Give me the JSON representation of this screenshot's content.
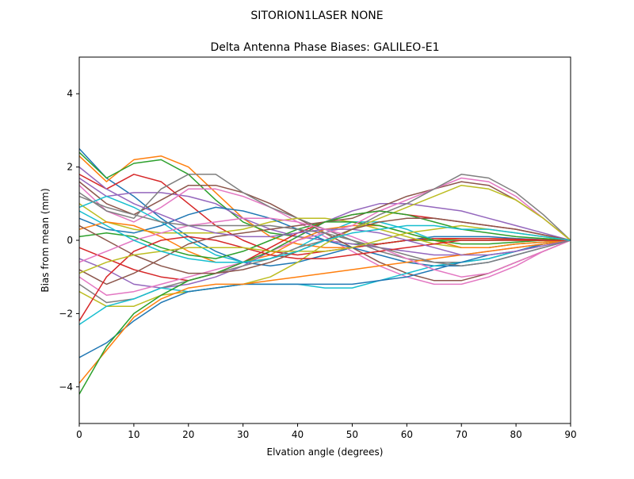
{
  "figure": {
    "suptitle": "SITORION1LASER  NONE"
  },
  "chart_data": {
    "type": "line",
    "title": "Delta Antenna Phase Biases: GALILEO-E1",
    "xlabel": "Elvation angle (degrees)",
    "ylabel": "Bias from mean (mm)",
    "xlim": [
      0,
      90
    ],
    "ylim": [
      -5,
      5
    ],
    "xticks": [
      0,
      10,
      20,
      30,
      40,
      50,
      60,
      70,
      80,
      90
    ],
    "yticks": [
      -4,
      -2,
      0,
      2,
      4
    ],
    "grid": false,
    "legend": "none",
    "x": [
      0,
      5,
      10,
      15,
      20,
      25,
      30,
      35,
      40,
      45,
      50,
      55,
      60,
      65,
      70,
      75,
      80,
      85,
      90
    ],
    "colors": [
      "#1f77b4",
      "#ff7f0e",
      "#2ca02c",
      "#d62728",
      "#9467bd",
      "#8c564b",
      "#e377c2",
      "#7f7f7f",
      "#bcbd22",
      "#17becf"
    ],
    "series": [
      {
        "values": [
          2.5,
          1.7,
          1.2,
          0.6,
          0.1,
          -0.3,
          -0.6,
          -0.7,
          -0.6,
          -0.4,
          -0.2,
          -0.1,
          0.0,
          0.1,
          0.1,
          0.1,
          0.05,
          0.02,
          0
        ]
      },
      {
        "values": [
          2.3,
          1.6,
          2.2,
          2.3,
          2.0,
          1.3,
          0.6,
          0.1,
          -0.1,
          -0.2,
          -0.2,
          -0.1,
          0.0,
          0.0,
          0.05,
          0.05,
          0.03,
          0.01,
          0
        ]
      },
      {
        "values": [
          2.4,
          1.7,
          2.1,
          2.2,
          1.8,
          1.1,
          0.5,
          0.2,
          0.1,
          0.0,
          -0.1,
          -0.1,
          0.0,
          0.0,
          0.0,
          0.0,
          0.0,
          0.0,
          0
        ]
      },
      {
        "values": [
          1.8,
          1.4,
          1.8,
          1.6,
          1.0,
          0.4,
          0.0,
          -0.3,
          -0.4,
          -0.3,
          -0.2,
          -0.1,
          0.0,
          0.05,
          0.05,
          0.05,
          0.03,
          0.01,
          0
        ]
      },
      {
        "values": [
          1.7,
          1.2,
          1.3,
          1.3,
          1.2,
          1.0,
          0.6,
          0.3,
          0.1,
          0.0,
          -0.1,
          -0.2,
          -0.3,
          -0.4,
          -0.4,
          -0.3,
          -0.2,
          -0.1,
          0
        ]
      },
      {
        "values": [
          1.6,
          1.0,
          0.7,
          1.1,
          1.5,
          1.5,
          1.3,
          1.0,
          0.6,
          0.2,
          -0.2,
          -0.6,
          -0.9,
          -1.1,
          -1.1,
          -0.9,
          -0.6,
          -0.3,
          0
        ]
      },
      {
        "values": [
          1.5,
          0.8,
          0.5,
          0.9,
          1.4,
          1.4,
          1.2,
          0.9,
          0.5,
          0.1,
          -0.3,
          -0.7,
          -1.0,
          -1.2,
          -1.2,
          -1.0,
          -0.7,
          -0.3,
          0
        ]
      },
      {
        "values": [
          1.3,
          0.8,
          0.6,
          1.4,
          1.8,
          1.8,
          1.3,
          0.9,
          0.6,
          0.3,
          0.0,
          -0.3,
          -0.5,
          -0.6,
          -0.6,
          -0.5,
          -0.3,
          -0.1,
          0
        ]
      },
      {
        "values": [
          1.0,
          0.5,
          0.3,
          0.2,
          0.2,
          0.2,
          0.3,
          0.5,
          0.6,
          0.6,
          0.5,
          0.3,
          0.1,
          -0.1,
          -0.2,
          -0.2,
          -0.1,
          -0.05,
          0
        ]
      },
      {
        "values": [
          0.9,
          1.2,
          0.9,
          0.5,
          0.0,
          -0.4,
          -0.6,
          -0.5,
          -0.2,
          0.2,
          0.5,
          0.5,
          0.3,
          0.0,
          -0.2,
          -0.2,
          -0.1,
          -0.05,
          0
        ]
      },
      {
        "values": [
          0.6,
          0.3,
          0.2,
          0.4,
          0.7,
          0.9,
          0.8,
          0.6,
          0.3,
          0.0,
          -0.2,
          -0.4,
          -0.6,
          -0.7,
          -0.7,
          -0.6,
          -0.4,
          -0.2,
          0
        ]
      },
      {
        "values": [
          0.3,
          0.5,
          0.4,
          0.1,
          -0.3,
          -0.6,
          -0.6,
          -0.4,
          0.0,
          0.3,
          0.4,
          0.4,
          0.2,
          0.0,
          -0.2,
          -0.2,
          -0.1,
          -0.05,
          0
        ]
      },
      {
        "values": [
          0.1,
          0.2,
          0.1,
          -0.2,
          -0.4,
          -0.5,
          -0.3,
          0.0,
          0.3,
          0.5,
          0.5,
          0.4,
          0.2,
          0.0,
          -0.1,
          -0.1,
          -0.05,
          0.0,
          0
        ]
      },
      {
        "values": [
          -0.2,
          -0.5,
          -0.8,
          -1.0,
          -1.1,
          -0.9,
          -0.6,
          -0.2,
          0.2,
          0.5,
          0.7,
          0.8,
          0.7,
          0.6,
          0.5,
          0.4,
          0.3,
          0.15,
          0
        ]
      },
      {
        "values": [
          -0.5,
          -0.8,
          -1.2,
          -1.3,
          -1.2,
          -1.0,
          -0.7,
          -0.3,
          0.1,
          0.5,
          0.8,
          1.0,
          1.0,
          0.9,
          0.8,
          0.6,
          0.4,
          0.2,
          0
        ]
      },
      {
        "values": [
          -0.8,
          -1.2,
          -0.9,
          -0.5,
          -0.1,
          0.1,
          0.2,
          0.3,
          0.4,
          0.5,
          0.6,
          0.9,
          1.2,
          1.4,
          1.6,
          1.5,
          1.1,
          0.6,
          0
        ]
      },
      {
        "values": [
          -1.0,
          -1.5,
          -1.4,
          -1.2,
          -1.0,
          -0.8,
          -0.6,
          -0.3,
          0.0,
          0.2,
          0.4,
          0.8,
          1.1,
          1.4,
          1.7,
          1.6,
          1.2,
          0.6,
          0
        ]
      },
      {
        "values": [
          -1.2,
          -1.7,
          -1.6,
          -1.3,
          -1.1,
          -0.9,
          -0.7,
          -0.5,
          -0.2,
          0.0,
          0.3,
          0.7,
          1.0,
          1.4,
          1.8,
          1.7,
          1.3,
          0.7,
          0
        ]
      },
      {
        "values": [
          -1.4,
          -1.8,
          -1.8,
          -1.5,
          -1.4,
          -1.3,
          -1.2,
          -1.0,
          -0.6,
          -0.1,
          0.3,
          0.6,
          0.9,
          1.2,
          1.5,
          1.4,
          1.1,
          0.6,
          0
        ]
      },
      {
        "values": [
          -2.3,
          -1.8,
          -1.6,
          -1.3,
          -1.4,
          -1.3,
          -1.2,
          -1.2,
          -1.2,
          -1.3,
          -1.3,
          -1.1,
          -0.9,
          -0.7,
          -0.6,
          -0.5,
          -0.3,
          -0.1,
          0
        ]
      },
      {
        "values": [
          -3.2,
          -2.8,
          -2.2,
          -1.7,
          -1.4,
          -1.3,
          -1.2,
          -1.2,
          -1.2,
          -1.2,
          -1.2,
          -1.1,
          -1.0,
          -0.8,
          -0.6,
          -0.4,
          -0.3,
          -0.1,
          0
        ]
      },
      {
        "values": [
          -3.9,
          -3.0,
          -2.1,
          -1.6,
          -1.3,
          -1.2,
          -1.2,
          -1.1,
          -1.0,
          -0.9,
          -0.8,
          -0.7,
          -0.6,
          -0.5,
          -0.4,
          -0.3,
          -0.2,
          -0.1,
          0
        ]
      },
      {
        "values": [
          -4.2,
          -2.9,
          -2.0,
          -1.5,
          -1.1,
          -0.9,
          -0.6,
          -0.3,
          0.1,
          0.5,
          0.7,
          0.8,
          0.7,
          0.5,
          0.3,
          0.2,
          0.1,
          0.05,
          0
        ]
      },
      {
        "values": [
          -2.2,
          -1.0,
          -0.3,
          0.0,
          0.1,
          0.0,
          -0.2,
          -0.4,
          -0.5,
          -0.5,
          -0.4,
          -0.3,
          -0.2,
          -0.1,
          0.0,
          0.0,
          0.0,
          0.0,
          0
        ]
      },
      {
        "values": [
          2.0,
          1.4,
          1.0,
          0.7,
          0.4,
          0.2,
          0.1,
          0.1,
          0.2,
          0.3,
          0.3,
          0.2,
          0.0,
          -0.2,
          -0.4,
          -0.4,
          -0.3,
          -0.15,
          0
        ]
      },
      {
        "values": [
          0.4,
          0.0,
          -0.4,
          -0.7,
          -0.9,
          -0.9,
          -0.8,
          -0.6,
          -0.3,
          0.0,
          0.3,
          0.5,
          0.6,
          0.6,
          0.5,
          0.4,
          0.3,
          0.15,
          0
        ]
      },
      {
        "values": [
          -0.6,
          -0.3,
          0.0,
          0.2,
          0.4,
          0.5,
          0.6,
          0.6,
          0.5,
          0.3,
          0.1,
          -0.2,
          -0.5,
          -0.8,
          -1.0,
          -0.9,
          -0.6,
          -0.3,
          0
        ]
      },
      {
        "values": [
          1.2,
          0.9,
          0.7,
          0.5,
          0.4,
          0.4,
          0.4,
          0.4,
          0.3,
          0.2,
          0.0,
          -0.2,
          -0.4,
          -0.6,
          -0.7,
          -0.6,
          -0.4,
          -0.2,
          0
        ]
      },
      {
        "values": [
          -0.9,
          -0.6,
          -0.4,
          -0.3,
          -0.2,
          -0.2,
          -0.2,
          -0.3,
          -0.3,
          -0.3,
          -0.2,
          0.0,
          0.2,
          0.3,
          0.4,
          0.3,
          0.2,
          0.1,
          0
        ]
      },
      {
        "values": [
          0.8,
          0.4,
          0.0,
          -0.3,
          -0.5,
          -0.6,
          -0.6,
          -0.5,
          -0.3,
          0.0,
          0.2,
          0.3,
          0.4,
          0.4,
          0.3,
          0.3,
          0.2,
          0.1,
          0
        ]
      }
    ]
  }
}
